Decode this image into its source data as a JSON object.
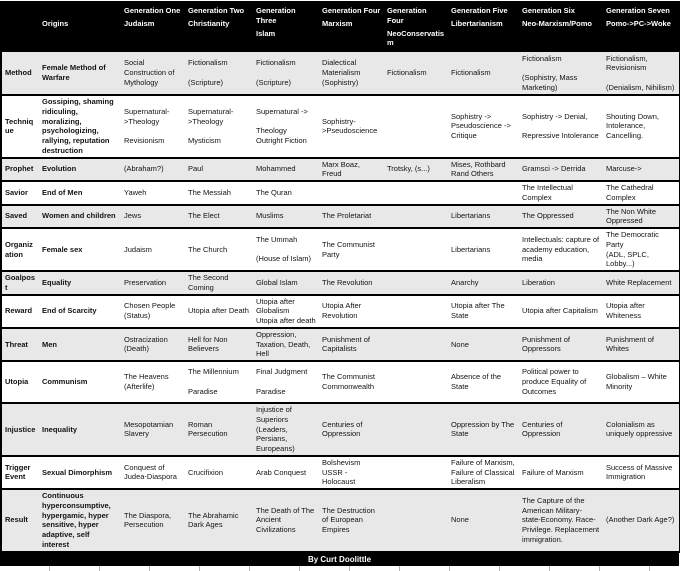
{
  "table": {
    "columns": [
      {
        "key": "row-label",
        "title": "",
        "subtitle": ""
      },
      {
        "key": "origins",
        "title": "",
        "subtitle": "Origins"
      },
      {
        "key": "judaism",
        "title": "Generation One",
        "subtitle": "Judaism"
      },
      {
        "key": "christianity",
        "title": "Generation Two",
        "subtitle": "Christianity"
      },
      {
        "key": "islam",
        "title": "Generation Three",
        "subtitle": "Islam"
      },
      {
        "key": "marxism",
        "title": "Generation Four",
        "subtitle": "Marxism"
      },
      {
        "key": "neoconservatism",
        "title": "Generation Four",
        "subtitle": "NeoConservatism"
      },
      {
        "key": "libertarianism",
        "title": "Generation Five",
        "subtitle": "Libertarianism"
      },
      {
        "key": "neo-marxism-pomo",
        "title": "Generation Six",
        "subtitle": "Neo-Marxism/Pomo"
      },
      {
        "key": "pomo-pc-woke",
        "title": "Generation Seven",
        "subtitle": "Pomo->PC->Woke"
      }
    ],
    "rows": [
      {
        "label": "Method",
        "origins": "Female Method of Warfare",
        "cells": [
          "Social Construction of Mythology",
          "Fictionalism\n\n(Scripture)",
          "Fictionalism\n\n(Scripture)",
          "Dialectical Materialism\n(Sophistry)",
          "Fictionalism",
          "Fictionalism",
          "Fictionalism\n\n(Sophistry, Mass Marketing)",
          "Fictionalism, Revisionism\n\n(Denialism, Nihilism)"
        ]
      },
      {
        "label": "Technique",
        "origins": "Gossiping, shaming ridiculing, moralizing, psychologizing, rallying, reputation destruction",
        "cells": [
          "Supernatural->Theology\n\nRevisionism",
          "Supernatural->Theology\n\nMysticism",
          "Supernatural ->\n\nTheology\nOutright Fiction",
          "Sophistry->Pseudoscience",
          "",
          "Sophistry -> Pseudoscience -> Critique",
          "Sophistry -> Denial,\n\nRepressive Intolerance",
          "Shouting Down, Intolerance, Cancelling."
        ]
      },
      {
        "label": "Prophet",
        "origins": "Evolution",
        "cells": [
          "(Abraham?)",
          "Paul",
          "Mohammed",
          "Marx Boaz, Freud",
          "Trotsky, (s...)",
          "Mises, Rothbard Rand Others",
          "Gramsci -> Derrida",
          "Marcuse->"
        ]
      },
      {
        "label": "Savior",
        "origins": "End of Men",
        "cells": [
          "Yaweh",
          "The Messiah",
          "The Quran",
          "",
          "",
          "",
          "The Intellectual Complex",
          "The Cathedral Complex"
        ]
      },
      {
        "label": "Saved",
        "origins": "Women and children",
        "cells": [
          "Jews",
          "The Elect",
          "Muslims",
          "The Proletariat",
          "",
          "Libertarians",
          "The Oppressed",
          "The Non White Oppressed"
        ]
      },
      {
        "label": "Organization",
        "origins": "Female sex",
        "cells": [
          "Judaism",
          "The Church",
          "The Ummah\n\n(House of Islam)",
          "The Communist Party",
          "",
          "Libertarians",
          "Intellectuals: capture of academy education, media",
          "The Democratic Party\n(ADL, SPLC, Lobby...)"
        ]
      },
      {
        "label": "Goalpost",
        "origins": "Equality",
        "cells": [
          "Preservation",
          "The Second Coming",
          "Global Islam",
          "The Revolution",
          "",
          "Anarchy",
          "Liberation",
          "White Replacement"
        ]
      },
      {
        "label": "Reward",
        "origins": "End of Scarcity",
        "cells": [
          "Chosen People (Status)",
          "Utopia after Death",
          "Utopia after Globalism\nUtopia after death",
          "Utopia After Revolution",
          "",
          "Utopia after The State",
          "Utopia after Capitalism",
          "Utopia after Whiteness"
        ]
      },
      {
        "label": "Threat",
        "origins": "Men",
        "cells": [
          "Ostracization (Death)",
          "Hell for Non Believers",
          "Oppression, Taxation, Death, Hell",
          "Punishment of Capitalists",
          "",
          "None",
          "Punishment of Oppressors",
          "Punishment of Whites"
        ]
      },
      {
        "label": "Utopia",
        "origins": "Communism",
        "cells": [
          "The Heavens (Afterlife)",
          "The Millennium\n\nParadise",
          "Final Judgment\n\nParadise",
          "The Communist Commonwealth",
          "",
          "Absence of the State",
          "Political power to produce Equality of Outcomes",
          "Globalism – White Minority"
        ]
      },
      {
        "label": "Injustice",
        "origins": "Inequality",
        "cells": [
          "Mesopotamian Slavery",
          "Roman Persecution",
          "Injustice of Superiors\n(Leaders, Persians, Europeans)",
          "Centuries of Oppression",
          "",
          "Oppression by The State",
          "Centuries of Oppression",
          "Colonialism as uniquely oppressive"
        ]
      },
      {
        "label": "Trigger Event",
        "origins": "Sexual Dimorphism",
        "cells": [
          "Conquest of Judea-Diaspora",
          "Crucifixion",
          "Arab Conquest",
          "Bolshevism USSR - Holocaust",
          "",
          "Failure of Marxism, Failure of Classical Liberalism",
          "Failure of Marxism",
          "Success of Massive Immigration"
        ]
      },
      {
        "label": "Result",
        "origins": "Continuous hyperconsumptive, hypergamic, hyper sensitive, hyper adaptive, self interest",
        "cells": [
          "The Diaspora, Persecution",
          "The Abrahamic Dark Ages",
          "The Death of The Ancient Civilizations",
          "The Destruction of European Empires",
          "",
          "None",
          "The Capture of the American Military-state-Economy. Race-Privilege. Replacement immigration.",
          "(Another Dark Age?)"
        ]
      }
    ],
    "footer": "By Curt Doolittle"
  }
}
